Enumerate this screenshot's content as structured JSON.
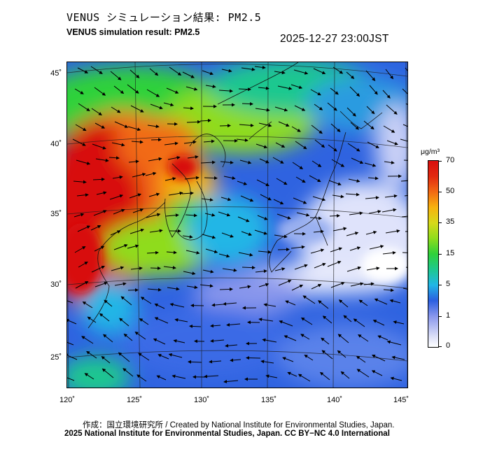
{
  "header": {
    "title_jp": "VENUS シミュレーション結果: PM2.5",
    "title_en": "VENUS simulation result: PM2.5",
    "timestamp": "2025-12-27 23:00JST"
  },
  "map": {
    "lat_labels": [
      "45˚",
      "40˚",
      "35˚",
      "30˚",
      "25˚"
    ],
    "lon_labels": [
      "120˚",
      "125˚",
      "130˚",
      "135˚",
      "140˚",
      "145˚"
    ],
    "wind_vectors": "arrows",
    "colors": {
      "very_high": "#d80f0f",
      "high": "#f26a12",
      "moderate": "#2fd13a",
      "low": "#1ec8c8",
      "ocean_base": "#2b5fe0",
      "clean": "#dfe3fb"
    }
  },
  "colorbar": {
    "unit": "μg/m³",
    "ticks": [
      "70",
      "50",
      "35",
      "15",
      "5",
      "1",
      "0"
    ]
  },
  "footer": {
    "credit_line_1": "作成：国立環境研究所 / Created by National Institute for Environmental Studies, Japan.",
    "credit_line_2": "2025 National Institute for Environmental Studies, Japan. CC BY−NC 4.0 International"
  }
}
